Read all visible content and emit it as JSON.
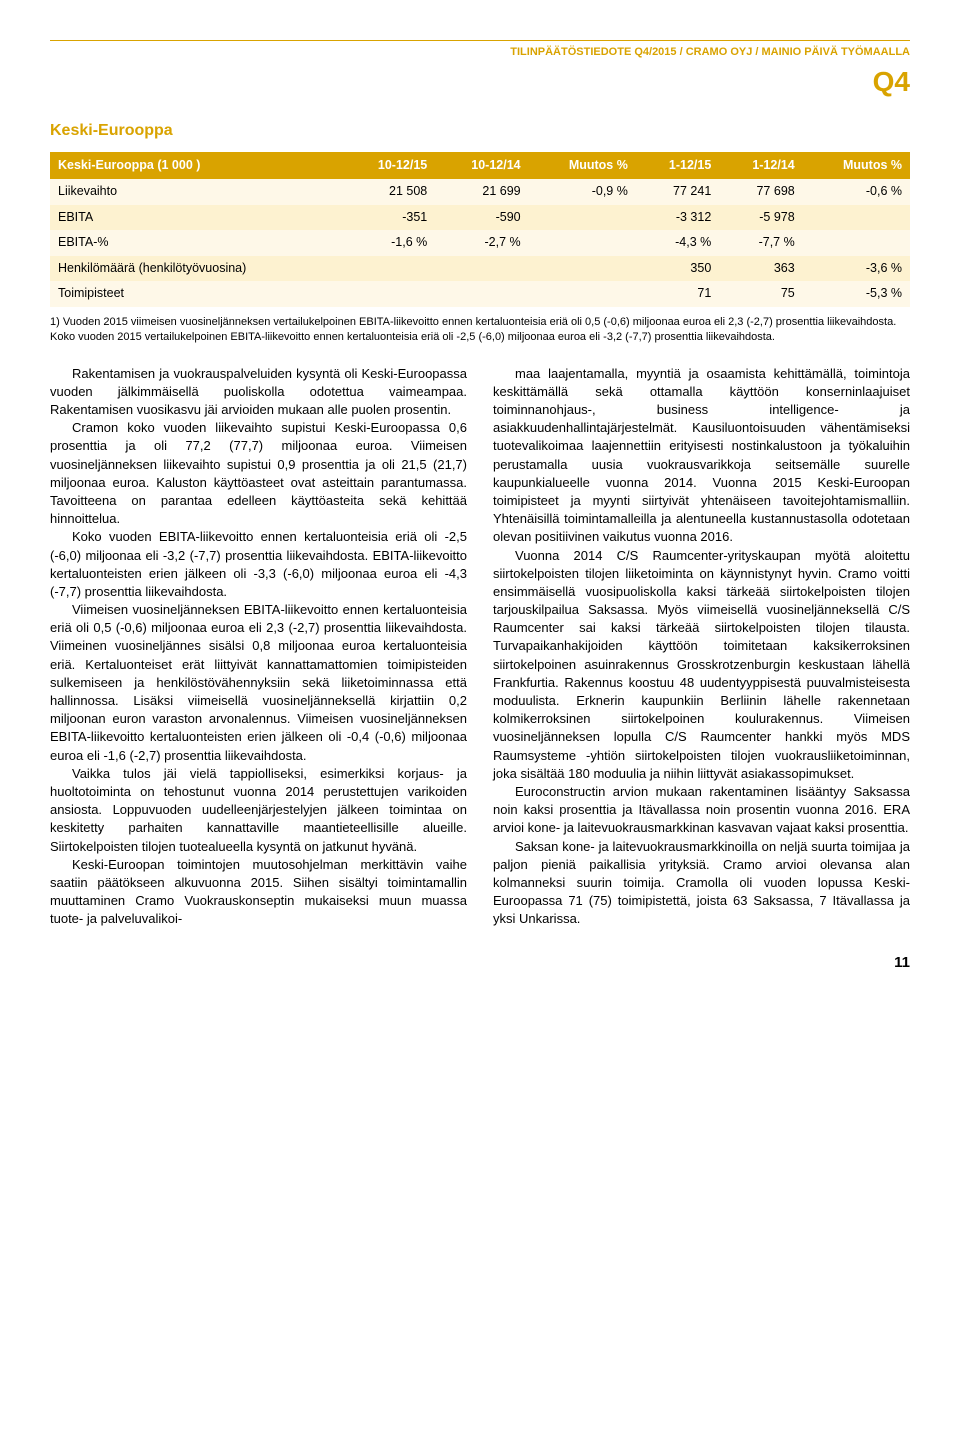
{
  "header": {
    "breadcrumb": "TILINPÄÄTÖSTIEDOTE Q4/2015 / CRAMO OYJ / MAINIO PÄIVÄ TYÖMAALLA",
    "quarter": "Q4"
  },
  "section_title": "Keski-Eurooppa",
  "table": {
    "header_bg": "#d9a300",
    "header_fg": "#ffffff",
    "row_odd_bg": "#fef8e8",
    "row_even_bg": "#fdf2d0",
    "columns": [
      "Keski-Eurooppa (1 000 )",
      "10-12/15",
      "10-12/14",
      "Muutos %",
      "1-12/15",
      "1-12/14",
      "Muutos %"
    ],
    "rows": [
      [
        "Liikevaihto",
        "21 508",
        "21 699",
        "-0,9 %",
        "77 241",
        "77 698",
        "-0,6 %"
      ],
      [
        "EBITA",
        "-351",
        "-590",
        "",
        "-3 312",
        "-5 978",
        ""
      ],
      [
        "EBITA-%",
        "-1,6 %",
        "-2,7 %",
        "",
        "-4,3 %",
        "-7,7 %",
        ""
      ],
      [
        "Henkilömäärä (henkilötyövuosina)",
        "",
        "",
        "",
        "350",
        "363",
        "-3,6 %"
      ],
      [
        "Toimipisteet",
        "",
        "",
        "",
        "71",
        "75",
        "-5,3 %"
      ]
    ]
  },
  "footnote": "1) Vuoden 2015 viimeisen vuosineljänneksen vertailukelpoinen EBITA-liikevoitto ennen kertaluonteisia eriä oli 0,5 (-0,6) miljoonaa euroa eli 2,3 (-2,7) prosenttia liikevaihdosta. Koko vuoden 2015 vertailukelpoinen EBITA-liikevoitto ennen kertaluonteisia eriä oli -2,5 (-6,0) miljoonaa euroa eli -3,2 (-7,7) prosenttia liikevaihdosta.",
  "body": {
    "left": [
      "Rakentamisen ja vuokrauspalveluiden kysyntä oli Keski-Euroopassa vuoden jälkimmäisellä puoliskolla odotettua vaimeampaa. Rakentamisen vuosikasvu jäi arvioiden mukaan alle puolen prosentin.",
      "Cramon koko vuoden liikevaihto supistui Keski-Euroopassa 0,6 prosenttia ja oli 77,2 (77,7) miljoonaa euroa. Viimeisen vuosineljänneksen liikevaihto supistui 0,9 prosenttia ja oli 21,5 (21,7) miljoonaa euroa. Kaluston käyttöasteet ovat asteittain parantumassa. Tavoitteena on parantaa edelleen käyttöasteita sekä kehittää hinnoittelua.",
      "Koko vuoden EBITA-liikevoitto ennen kertaluonteisia eriä oli -2,5 (-6,0) miljoonaa eli -3,2 (-7,7) prosenttia liikevaihdosta. EBITA-liikevoitto kertaluonteisten erien jälkeen oli -3,3 (-6,0) miljoonaa euroa eli -4,3 (-7,7) prosenttia liikevaihdosta.",
      "Viimeisen vuosineljänneksen EBITA-liikevoitto ennen kertaluonteisia eriä oli 0,5 (-0,6) miljoonaa euroa eli 2,3 (-2,7) prosenttia liikevaihdosta. Viimeinen vuosineljännes sisälsi 0,8 miljoonaa euroa kertaluonteisia eriä. Kertaluonteiset erät liittyivät kannattamattomien toimipisteiden sulkemiseen ja henkilöstövähennyksiin sekä liiketoiminnassa että hallinnossa. Lisäksi viimeisellä vuosineljänneksellä kirjattiin 0,2 miljoonan euron varaston arvonalennus. Viimeisen vuosineljänneksen EBITA-liikevoitto kertaluonteisten erien jälkeen oli -0,4 (-0,6) miljoonaa euroa eli -1,6 (-2,7) prosenttia liikevaihdosta.",
      "Vaikka tulos jäi vielä tappiolliseksi, esimerkiksi korjaus- ja huoltotoiminta on tehostunut vuonna 2014 perustettujen varikoiden ansiosta. Loppuvuoden uudelleenjärjestelyjen jälkeen toimintaa on keskitetty parhaiten kannattaville maantieteellisille alueille. Siirtokelpoisten tilojen tuotealueella kysyntä on jatkunut hyvänä.",
      "Keski-Euroopan toimintojen muutosohjelman merkittävin vaihe saatiin päätökseen alkuvuonna 2015. Siihen sisältyi toimintamallin muuttaminen Cramo Vuokrauskonseptin mukaiseksi muun muassa tuote- ja palveluvalikoi-"
    ],
    "right": [
      "maa laajentamalla, myyntiä ja osaamista kehittämällä, toimintoja keskittämällä sekä ottamalla käyttöön konserninlaajuiset toiminnanohjaus-, business intelligence- ja asiakkuudenhallintajärjestelmät. Kausiluontoisuuden vähentämiseksi tuotevalikoimaa laajennettiin erityisesti nostinkalustoon ja työkaluihin perustamalla uusia vuokrausvarikkoja seitsemälle suurelle kaupunkialueelle vuonna 2014. Vuonna 2015 Keski-Euroopan toimipisteet ja myynti siirtyivät yhtenäiseen tavoitejohtamismalliin. Yhtenäisillä toimintamalleilla ja alentuneella kustannustasolla odotetaan olevan positiivinen vaikutus vuonna 2016.",
      "Vuonna 2014 C/S Raumcenter-yrityskaupan myötä aloitettu siirtokelpoisten tilojen liiketoiminta on käynnistynyt hyvin. Cramo voitti ensimmäisellä vuosipuoliskolla kaksi tärkeää siirtokelpoisten tilojen tarjouskilpailua Saksassa. Myös viimeisellä vuosineljänneksellä C/S Raumcenter sai kaksi tärkeää siirtokelpoisten tilojen tilausta. Turvapaikanhakijoiden käyttöön toimitetaan kaksikerroksinen siirtokelpoinen asuinrakennus Grosskrotzenburgin keskustaan lähellä Frankfurtia. Rakennus koostuu 48 uudentyyppisestä puuvalmisteisesta moduulista. Erknerin kaupunkiin Berliinin lähelle rakennetaan kolmikerroksinen siirtokelpoinen koulurakennus. Viimeisen vuosineljänneksen lopulla C/S Raumcenter hankki myös MDS Raumsysteme -yhtiön siirtokelpoisten tilojen vuokrausliiketoiminnan, joka sisältää 180 moduulia ja niihin liittyvät asiakassopimukset.",
      "Euroconstructin arvion mukaan rakentaminen lisääntyy Saksassa noin kaksi prosenttia ja Itävallassa noin prosentin vuonna 2016. ERA arvioi kone- ja laitevuokrausmarkkinan kasvavan vajaat kaksi prosenttia.",
      "Saksan kone- ja laitevuokrausmarkkinoilla on neljä suurta toimijaa ja paljon pieniä paikallisia yrityksiä. Cramo arvioi olevansa alan kolmanneksi suurin toimija. Cramolla oli vuoden lopussa Keski-Euroopassa 71 (75) toimipistettä, joista 63 Saksassa, 7 Itävallassa ja yksi Unkarissa."
    ]
  },
  "page_number": "11"
}
